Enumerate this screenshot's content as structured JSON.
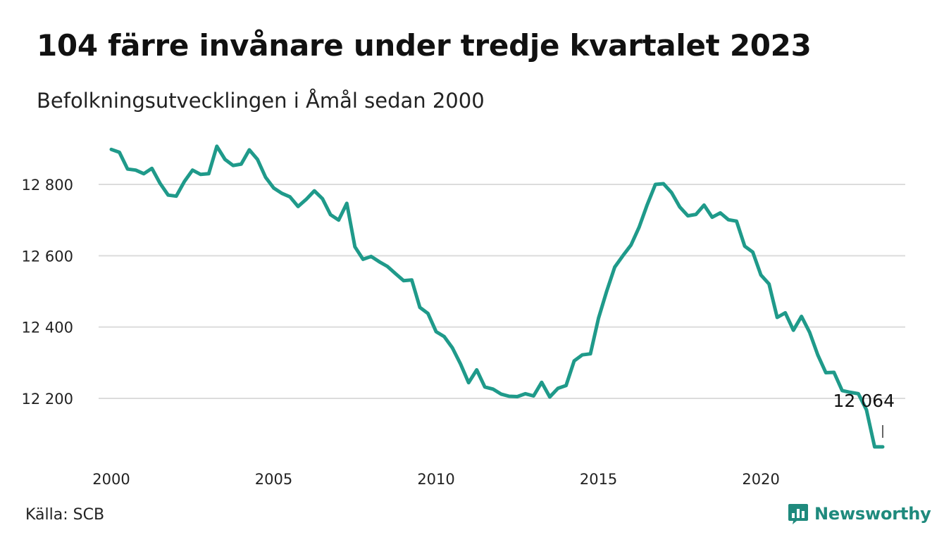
{
  "header": {
    "title": "104 färre invånare under tredje kvartalet 2023",
    "subtitle": "Befolkningsutvecklingen i Åmål sedan 2000"
  },
  "footer": {
    "source": "Källa: SCB",
    "brand": "Newsworthy",
    "brand_icon": "bar-chart-badge-icon"
  },
  "colors": {
    "line": "#1f9a8a",
    "grid": "#dcdcdc",
    "brand": "#1f8a7d"
  },
  "chart_data": {
    "type": "line",
    "title": "104 färre invånare under tredje kvartalet 2023",
    "subtitle": "Befolkningsutvecklingen i Åmål sedan 2000",
    "xlabel": "",
    "ylabel": "",
    "grid": true,
    "legend": "none",
    "xlim": [
      2000,
      2023.75
    ],
    "ylim": [
      12040,
      12920
    ],
    "x_ticks": [
      2000,
      2005,
      2010,
      2015,
      2020
    ],
    "y_ticks": [
      12200,
      12400,
      12600,
      12800
    ],
    "y_tick_labels": [
      "12 200",
      "12 400",
      "12 600",
      "12 800"
    ],
    "annotation": {
      "x": 2023.75,
      "y": 12064,
      "text": "12 064"
    },
    "series": [
      {
        "name": "",
        "x": [
          2000.0,
          2000.25,
          2000.5,
          2000.75,
          2001.0,
          2001.25,
          2001.5,
          2001.75,
          2002.0,
          2002.25,
          2002.5,
          2002.75,
          2003.0,
          2003.25,
          2003.5,
          2003.75,
          2004.0,
          2004.25,
          2004.5,
          2004.75,
          2005.0,
          2005.25,
          2005.5,
          2005.75,
          2006.0,
          2006.25,
          2006.5,
          2006.75,
          2007.0,
          2007.25,
          2007.5,
          2007.75,
          2008.0,
          2008.25,
          2008.5,
          2008.75,
          2009.0,
          2009.25,
          2009.5,
          2009.75,
          2010.0,
          2010.25,
          2010.5,
          2010.75,
          2011.0,
          2011.25,
          2011.5,
          2011.75,
          2012.0,
          2012.25,
          2012.5,
          2012.75,
          2013.0,
          2013.25,
          2013.5,
          2013.75,
          2014.0,
          2014.25,
          2014.5,
          2014.75,
          2015.0,
          2015.25,
          2015.5,
          2015.75,
          2016.0,
          2016.25,
          2016.5,
          2016.75,
          2017.0,
          2017.25,
          2017.5,
          2017.75,
          2018.0,
          2018.25,
          2018.5,
          2018.75,
          2019.0,
          2019.25,
          2019.5,
          2019.75,
          2020.0,
          2020.25,
          2020.5,
          2020.75,
          2021.0,
          2021.25,
          2021.5,
          2021.75,
          2022.0,
          2022.25,
          2022.5,
          2022.75,
          2023.0,
          2023.25,
          2023.5,
          2023.75
        ],
        "values": [
          12898,
          12890,
          12843,
          12840,
          12830,
          12845,
          12803,
          12770,
          12767,
          12808,
          12840,
          12828,
          12830,
          12907,
          12870,
          12853,
          12857,
          12897,
          12870,
          12820,
          12790,
          12775,
          12765,
          12738,
          12758,
          12782,
          12760,
          12715,
          12700,
          12747,
          12625,
          12590,
          12598,
          12583,
          12570,
          12550,
          12530,
          12532,
          12455,
          12438,
          12387,
          12373,
          12342,
          12297,
          12244,
          12280,
          12232,
          12226,
          12212,
          12206,
          12205,
          12213,
          12207,
          12245,
          12204,
          12228,
          12236,
          12305,
          12322,
          12325,
          12425,
          12500,
          12568,
          12600,
          12630,
          12680,
          12743,
          12800,
          12802,
          12777,
          12737,
          12712,
          12716,
          12742,
          12708,
          12720,
          12701,
          12697,
          12627,
          12610,
          12546,
          12521,
          12427,
          12440,
          12391,
          12430,
          12385,
          12322,
          12272,
          12273,
          12222,
          12217,
          12213,
          12168,
          12064,
          12064
        ]
      }
    ]
  }
}
